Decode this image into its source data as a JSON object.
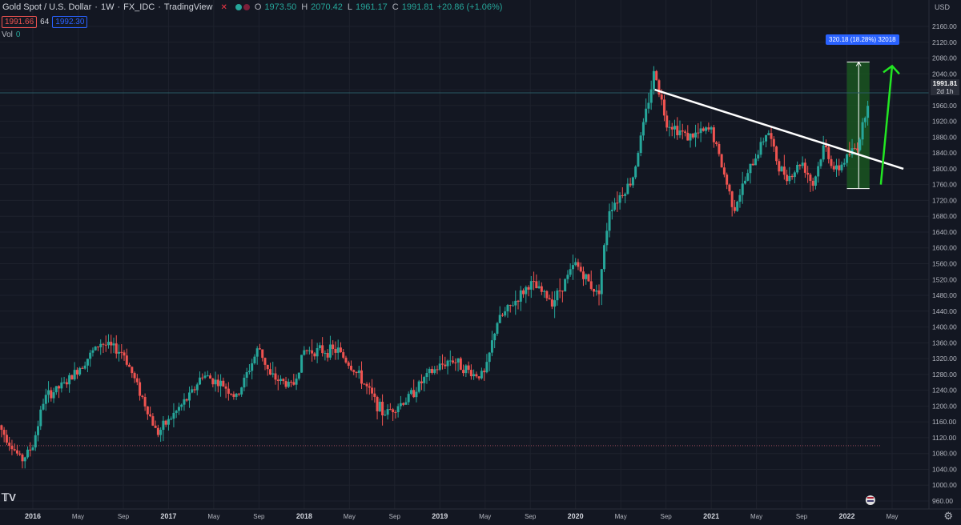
{
  "header": {
    "symbol": "Gold Spot / U.S. Dollar",
    "interval": "1W",
    "exchange": "FX_IDC",
    "source": "TradingView",
    "o_label": "O",
    "o_value": "1973.50",
    "h_label": "H",
    "h_value": "2070.42",
    "l_label": "L",
    "l_value": "1961.17",
    "c_label": "C",
    "c_value": "1991.81",
    "change": "+20.86 (+1.06%)"
  },
  "price_row": {
    "bid": "1991.66",
    "spread": "64",
    "ask": "1992.30"
  },
  "volume": {
    "label": "Vol",
    "value": "0"
  },
  "axis": {
    "currency": "USD"
  },
  "last_price": {
    "value": "1991.81",
    "countdown": "2d 1h"
  },
  "measure": {
    "label": "320.18 (18.28%) 32018"
  },
  "colors": {
    "background": "#131722",
    "up": "#26a69a",
    "down": "#ef5350",
    "trendline": "#ffffff",
    "arrow": "#22e622",
    "measure_fill": "#1b5e20",
    "measure_label": "#2962ff"
  },
  "chart_data": {
    "type": "candlestick",
    "title": "Gold Spot / U.S. Dollar",
    "xlabel": "",
    "ylabel": "",
    "x_range": [
      "2015-10",
      "2022-06"
    ],
    "ylim": [
      940,
      2180
    ],
    "grid": true,
    "y_ticks": [
      960,
      1000,
      1040,
      1080,
      1120,
      1160,
      1200,
      1240,
      1280,
      1320,
      1360,
      1400,
      1440,
      1480,
      1520,
      1560,
      1600,
      1640,
      1680,
      1720,
      1760,
      1800,
      1840,
      1880,
      1920,
      1960,
      2000,
      2040,
      2080,
      2120,
      2160
    ],
    "x_ticks": [
      {
        "label": "2016",
        "date": "2016-01"
      },
      {
        "label": "May",
        "date": "2016-05"
      },
      {
        "label": "Sep",
        "date": "2016-09"
      },
      {
        "label": "2017",
        "date": "2017-01"
      },
      {
        "label": "May",
        "date": "2017-05"
      },
      {
        "label": "Sep",
        "date": "2017-09"
      },
      {
        "label": "2018",
        "date": "2018-01"
      },
      {
        "label": "May",
        "date": "2018-05"
      },
      {
        "label": "Sep",
        "date": "2018-09"
      },
      {
        "label": "2019",
        "date": "2019-01"
      },
      {
        "label": "May",
        "date": "2019-05"
      },
      {
        "label": "Sep",
        "date": "2019-09"
      },
      {
        "label": "2020",
        "date": "2020-01"
      },
      {
        "label": "May",
        "date": "2020-05"
      },
      {
        "label": "Sep",
        "date": "2020-09"
      },
      {
        "label": "2021",
        "date": "2021-01"
      },
      {
        "label": "May",
        "date": "2021-05"
      },
      {
        "label": "Sep",
        "date": "2021-09"
      },
      {
        "label": "2022",
        "date": "2022-01"
      },
      {
        "label": "May",
        "date": "2022-05"
      }
    ],
    "close_path": [
      {
        "date": "2015-10",
        "price": 1150
      },
      {
        "date": "2015-12",
        "price": 1062
      },
      {
        "date": "2016-01",
        "price": 1100
      },
      {
        "date": "2016-02",
        "price": 1220
      },
      {
        "date": "2016-04",
        "price": 1260
      },
      {
        "date": "2016-07",
        "price": 1360
      },
      {
        "date": "2016-09",
        "price": 1335
      },
      {
        "date": "2016-11",
        "price": 1200
      },
      {
        "date": "2016-12",
        "price": 1130
      },
      {
        "date": "2017-03",
        "price": 1230
      },
      {
        "date": "2017-04",
        "price": 1280
      },
      {
        "date": "2017-06",
        "price": 1250
      },
      {
        "date": "2017-07",
        "price": 1220
      },
      {
        "date": "2017-09",
        "price": 1350
      },
      {
        "date": "2017-10",
        "price": 1275
      },
      {
        "date": "2017-12",
        "price": 1250
      },
      {
        "date": "2018-01",
        "price": 1340
      },
      {
        "date": "2018-04",
        "price": 1340
      },
      {
        "date": "2018-06",
        "price": 1270
      },
      {
        "date": "2018-08",
        "price": 1180
      },
      {
        "date": "2018-10",
        "price": 1215
      },
      {
        "date": "2018-12",
        "price": 1280
      },
      {
        "date": "2019-02",
        "price": 1320
      },
      {
        "date": "2019-04",
        "price": 1280
      },
      {
        "date": "2019-05",
        "price": 1280
      },
      {
        "date": "2019-06",
        "price": 1410
      },
      {
        "date": "2019-09",
        "price": 1510
      },
      {
        "date": "2019-11",
        "price": 1465
      },
      {
        "date": "2020-01",
        "price": 1560
      },
      {
        "date": "2020-03",
        "price": 1480
      },
      {
        "date": "2020-04",
        "price": 1700
      },
      {
        "date": "2020-06",
        "price": 1770
      },
      {
        "date": "2020-08",
        "price": 2050
      },
      {
        "date": "2020-09",
        "price": 1920
      },
      {
        "date": "2020-11",
        "price": 1880
      },
      {
        "date": "2021-01",
        "price": 1900
      },
      {
        "date": "2021-03",
        "price": 1700
      },
      {
        "date": "2021-04",
        "price": 1770
      },
      {
        "date": "2021-06",
        "price": 1900
      },
      {
        "date": "2021-07",
        "price": 1800
      },
      {
        "date": "2021-08",
        "price": 1780
      },
      {
        "date": "2021-09",
        "price": 1820
      },
      {
        "date": "2021-10",
        "price": 1760
      },
      {
        "date": "2021-11",
        "price": 1860
      },
      {
        "date": "2021-12",
        "price": 1790
      },
      {
        "date": "2022-01",
        "price": 1830
      },
      {
        "date": "2022-02",
        "price": 1860
      },
      {
        "date": "2022-03",
        "price": 1992
      }
    ],
    "annotations": {
      "trendline": {
        "from": {
          "date": "2020-08",
          "price": 2000
        },
        "to": {
          "date": "2022-06",
          "price": 1800
        }
      },
      "measure_box": {
        "from_date": "2022-01",
        "to_date": "2022-03",
        "low": 1750,
        "high": 2070
      },
      "arrow": {
        "from": {
          "date": "2022-04",
          "price": 1760
        },
        "to": {
          "date": "2022-05",
          "price": 2060
        }
      },
      "horizontal_level": 1100
    }
  }
}
